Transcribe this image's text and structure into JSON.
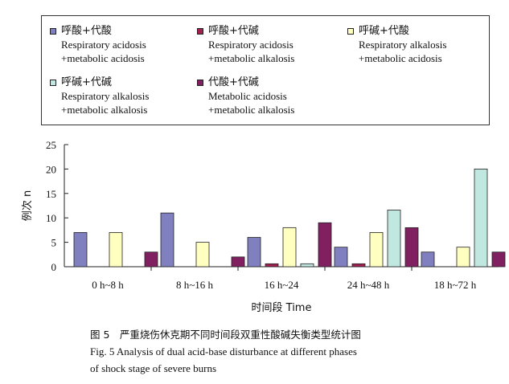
{
  "legend": [
    {
      "cn": "呼酸+代酸",
      "en1": "Respiratory acidosis",
      "en2": "+metabolic acidosis",
      "color": "#8080c0"
    },
    {
      "cn": "呼酸+代碱",
      "en1": "Respiratory acidosis",
      "en2": "+metabolic alkalosis",
      "color": "#a02050"
    },
    {
      "cn": "呼碱+代酸",
      "en1": "Respiratory alkalosis",
      "en2": "+metabolic acidosis",
      "color": "#ffffc0"
    },
    {
      "cn": "呼碱+代碱",
      "en1": "Respiratory alkalosis",
      "en2": "+metabolic alkalosis",
      "color": "#c0e8e0"
    },
    {
      "cn": "代酸+代碱",
      "en1": "Metabolic acidosis",
      "en2": "+metabolic alkalosis",
      "color": "#802060"
    }
  ],
  "chart_data": {
    "type": "bar",
    "categories": [
      "0 h~8 h",
      "8 h~16 h",
      "16 h~24",
      "24 h~48 h",
      "18 h~72 h"
    ],
    "series": [
      {
        "name": "呼酸+代酸",
        "values": [
          7,
          11,
          6,
          4,
          3
        ]
      },
      {
        "name": "呼酸+代碱",
        "values": [
          0,
          0,
          0.6,
          0.6,
          0
        ]
      },
      {
        "name": "呼碱+代酸",
        "values": [
          7,
          5,
          8,
          7,
          4
        ]
      },
      {
        "name": "呼碱+代碱",
        "values": [
          0,
          0,
          0.6,
          11.6,
          20
        ]
      },
      {
        "name": "代酸+代碱",
        "values": [
          3,
          2,
          9,
          8,
          3
        ]
      }
    ],
    "xlabel": "时间段 Time",
    "ylabel": "例次 n",
    "ylim": [
      0,
      25
    ],
    "yticks": [
      0,
      5,
      10,
      15,
      20,
      25
    ],
    "legend_position": "top",
    "grid": false
  },
  "caption": {
    "cn": "图 5　严重烧伤休克期不同时间段双重性酸碱失衡类型统计图",
    "en1": "Fig.  5    Analysis of dual acid-base disturbance at different phases",
    "en2": "of shock stage of severe burns"
  }
}
